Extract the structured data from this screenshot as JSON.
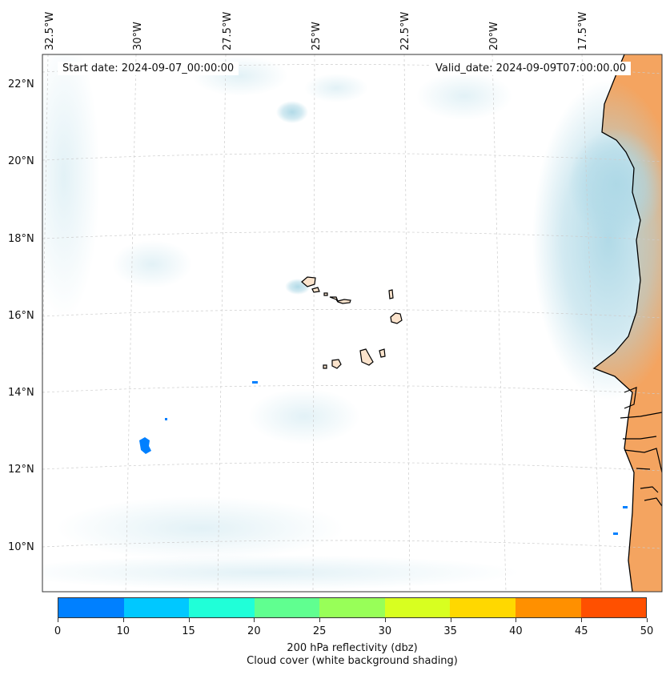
{
  "map": {
    "longitude_labels": [
      "32.5°W",
      "30°W",
      "27.5°W",
      "25°W",
      "22.5°W",
      "20°W",
      "17.5°W"
    ],
    "latitude_labels": [
      "22°N",
      "20°N",
      "18°N",
      "16°N",
      "14°N",
      "12°N",
      "10°N"
    ],
    "start_date": "Start date: 2024-09-07_00:00:00",
    "valid_date": "Valid_date: 2024-09-09T07:00:00.00",
    "colors": {
      "land": "#f4a460",
      "cloud": "#add8e6",
      "coastline": "#000000",
      "gridline": "#cccccc"
    }
  },
  "colorbar": {
    "ticks": [
      "0",
      "10",
      "15",
      "20",
      "25",
      "30",
      "35",
      "40",
      "45",
      "50"
    ],
    "colors": [
      "#0080ff",
      "#00c8ff",
      "#20ffd8",
      "#60ff90",
      "#98ff58",
      "#d8ff20",
      "#ffd800",
      "#ff9000",
      "#ff5000"
    ],
    "label_line1": "200 hPa reflectivity (dbz)",
    "label_line2": "Cloud cover (white background shading)"
  }
}
